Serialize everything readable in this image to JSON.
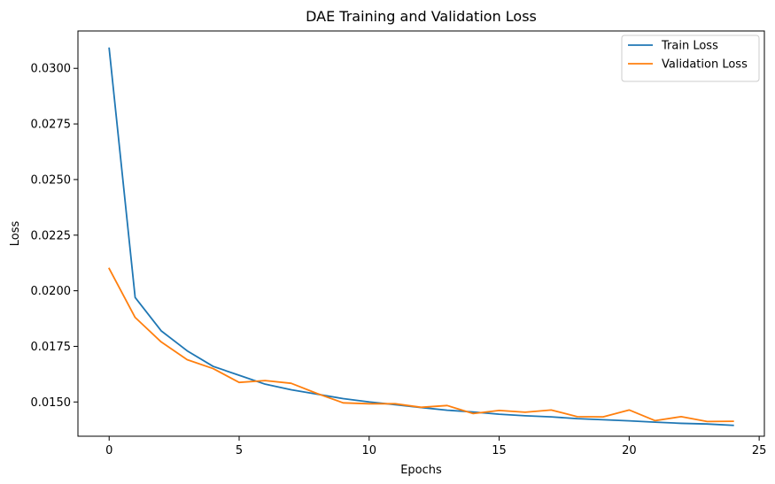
{
  "chart_data": {
    "type": "line",
    "title": "DAE Training and Validation Loss",
    "xlabel": "Epochs",
    "ylabel": "Loss",
    "xlim": [
      -1.2,
      25.2
    ],
    "ylim": [
      0.01346,
      0.03168
    ],
    "xticks": [
      0,
      5,
      10,
      15,
      20,
      25
    ],
    "xtick_labels": [
      "0",
      "5",
      "10",
      "15",
      "20",
      "25"
    ],
    "yticks": [
      0.015,
      0.0175,
      0.02,
      0.0225,
      0.025,
      0.0275,
      0.03
    ],
    "ytick_labels": [
      "0.0150",
      "0.0175",
      "0.0200",
      "0.0225",
      "0.0250",
      "0.0275",
      "0.0300"
    ],
    "grid": false,
    "legend_position": "top-right",
    "x": [
      0,
      1,
      2,
      3,
      4,
      5,
      6,
      7,
      8,
      9,
      10,
      11,
      12,
      13,
      14,
      15,
      16,
      17,
      18,
      19,
      20,
      21,
      22,
      23,
      24
    ],
    "series": [
      {
        "name": "Train Loss",
        "color": "#1f77b4",
        "values": [
          0.0309,
          0.0197,
          0.0182,
          0.0173,
          0.0166,
          0.0162,
          0.0158,
          0.01555,
          0.01535,
          0.01515,
          0.015,
          0.01488,
          0.01475,
          0.01463,
          0.01455,
          0.01445,
          0.01438,
          0.01433,
          0.01425,
          0.0142,
          0.01415,
          0.01409,
          0.01404,
          0.01401,
          0.01395
        ]
      },
      {
        "name": "Validation Loss",
        "color": "#ff7f0e",
        "values": [
          0.021,
          0.0188,
          0.0177,
          0.0169,
          0.0165,
          0.01588,
          0.01596,
          0.01584,
          0.01538,
          0.01496,
          0.01492,
          0.01492,
          0.01476,
          0.01484,
          0.01448,
          0.01462,
          0.01454,
          0.01464,
          0.01434,
          0.01433,
          0.01464,
          0.01416,
          0.01434,
          0.01412,
          0.01413
        ]
      }
    ]
  }
}
